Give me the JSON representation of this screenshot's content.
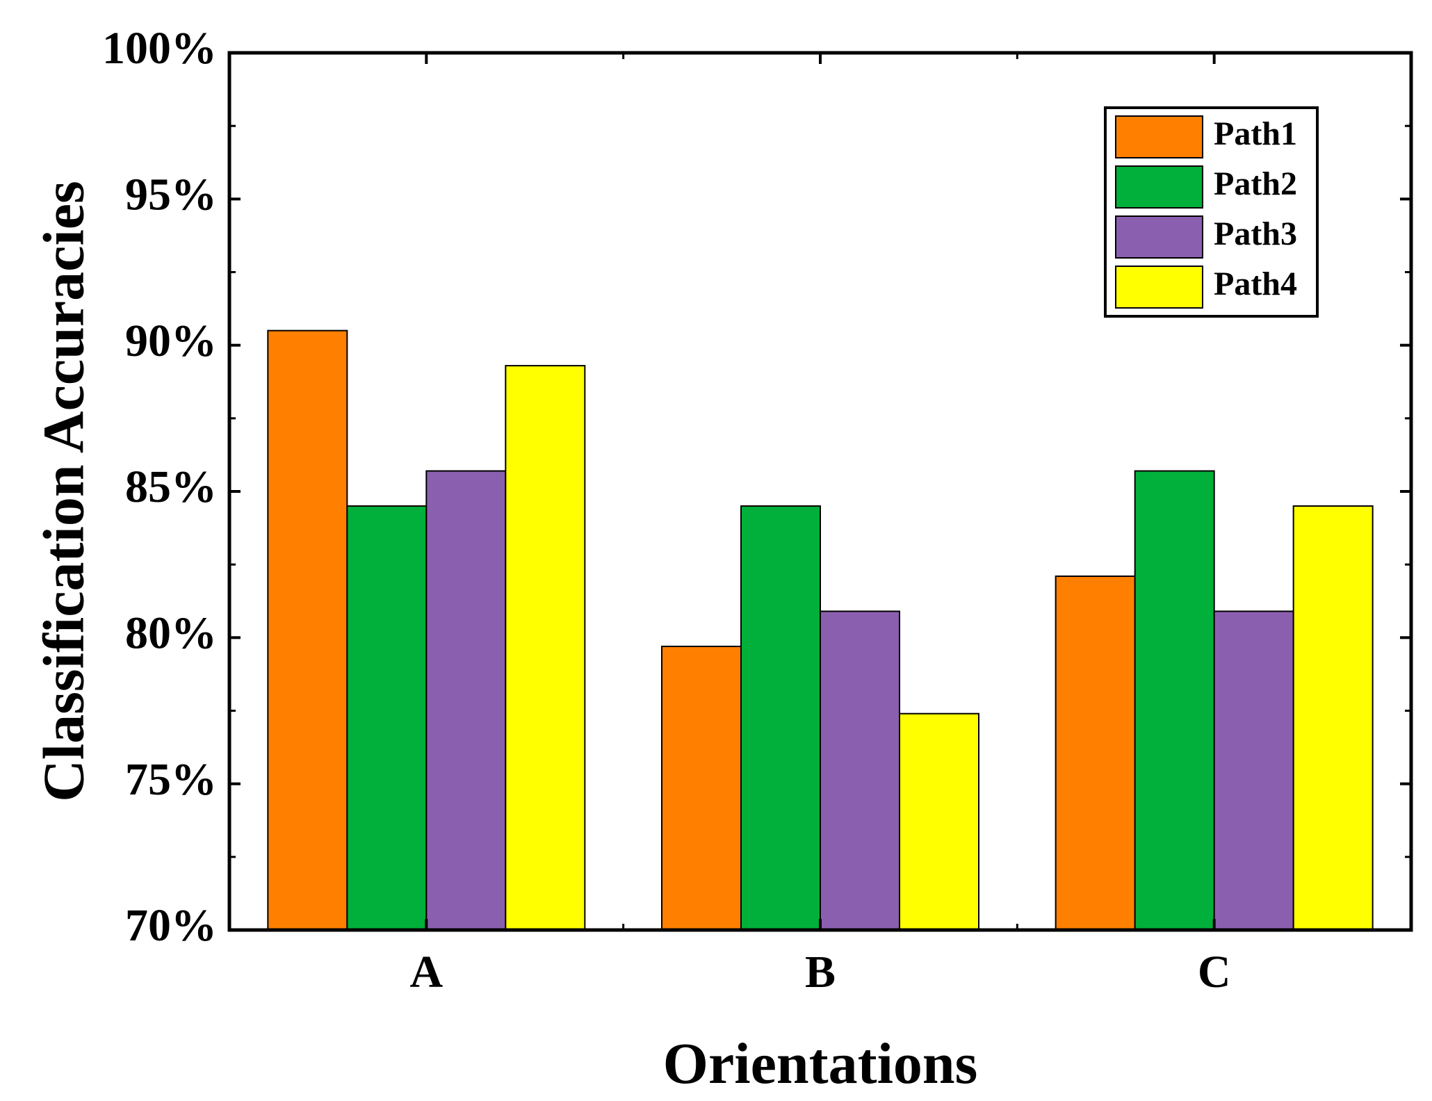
{
  "chart_data": {
    "type": "bar",
    "title": "",
    "xlabel": "Orientations",
    "ylabel": "Classification Accuracies",
    "categories": [
      "A",
      "B",
      "C"
    ],
    "ylim": [
      70,
      100
    ],
    "yticks": [
      70,
      75,
      80,
      85,
      90,
      95,
      100
    ],
    "ytick_labels": [
      "70%",
      "75%",
      "80%",
      "85%",
      "90%",
      "95%",
      "100%"
    ],
    "grid": false,
    "legend_position": "top-right",
    "series": [
      {
        "name": "Path1",
        "color": "#FF8000",
        "values": [
          90.5,
          79.7,
          82.1
        ]
      },
      {
        "name": "Path2",
        "color": "#00B03A",
        "values": [
          84.5,
          84.5,
          85.7
        ]
      },
      {
        "name": "Path3",
        "color": "#8B5FAF",
        "values": [
          85.7,
          80.9,
          80.9
        ]
      },
      {
        "name": "Path4",
        "color": "#FFFF00",
        "values": [
          89.3,
          77.4,
          84.5
        ]
      }
    ]
  }
}
